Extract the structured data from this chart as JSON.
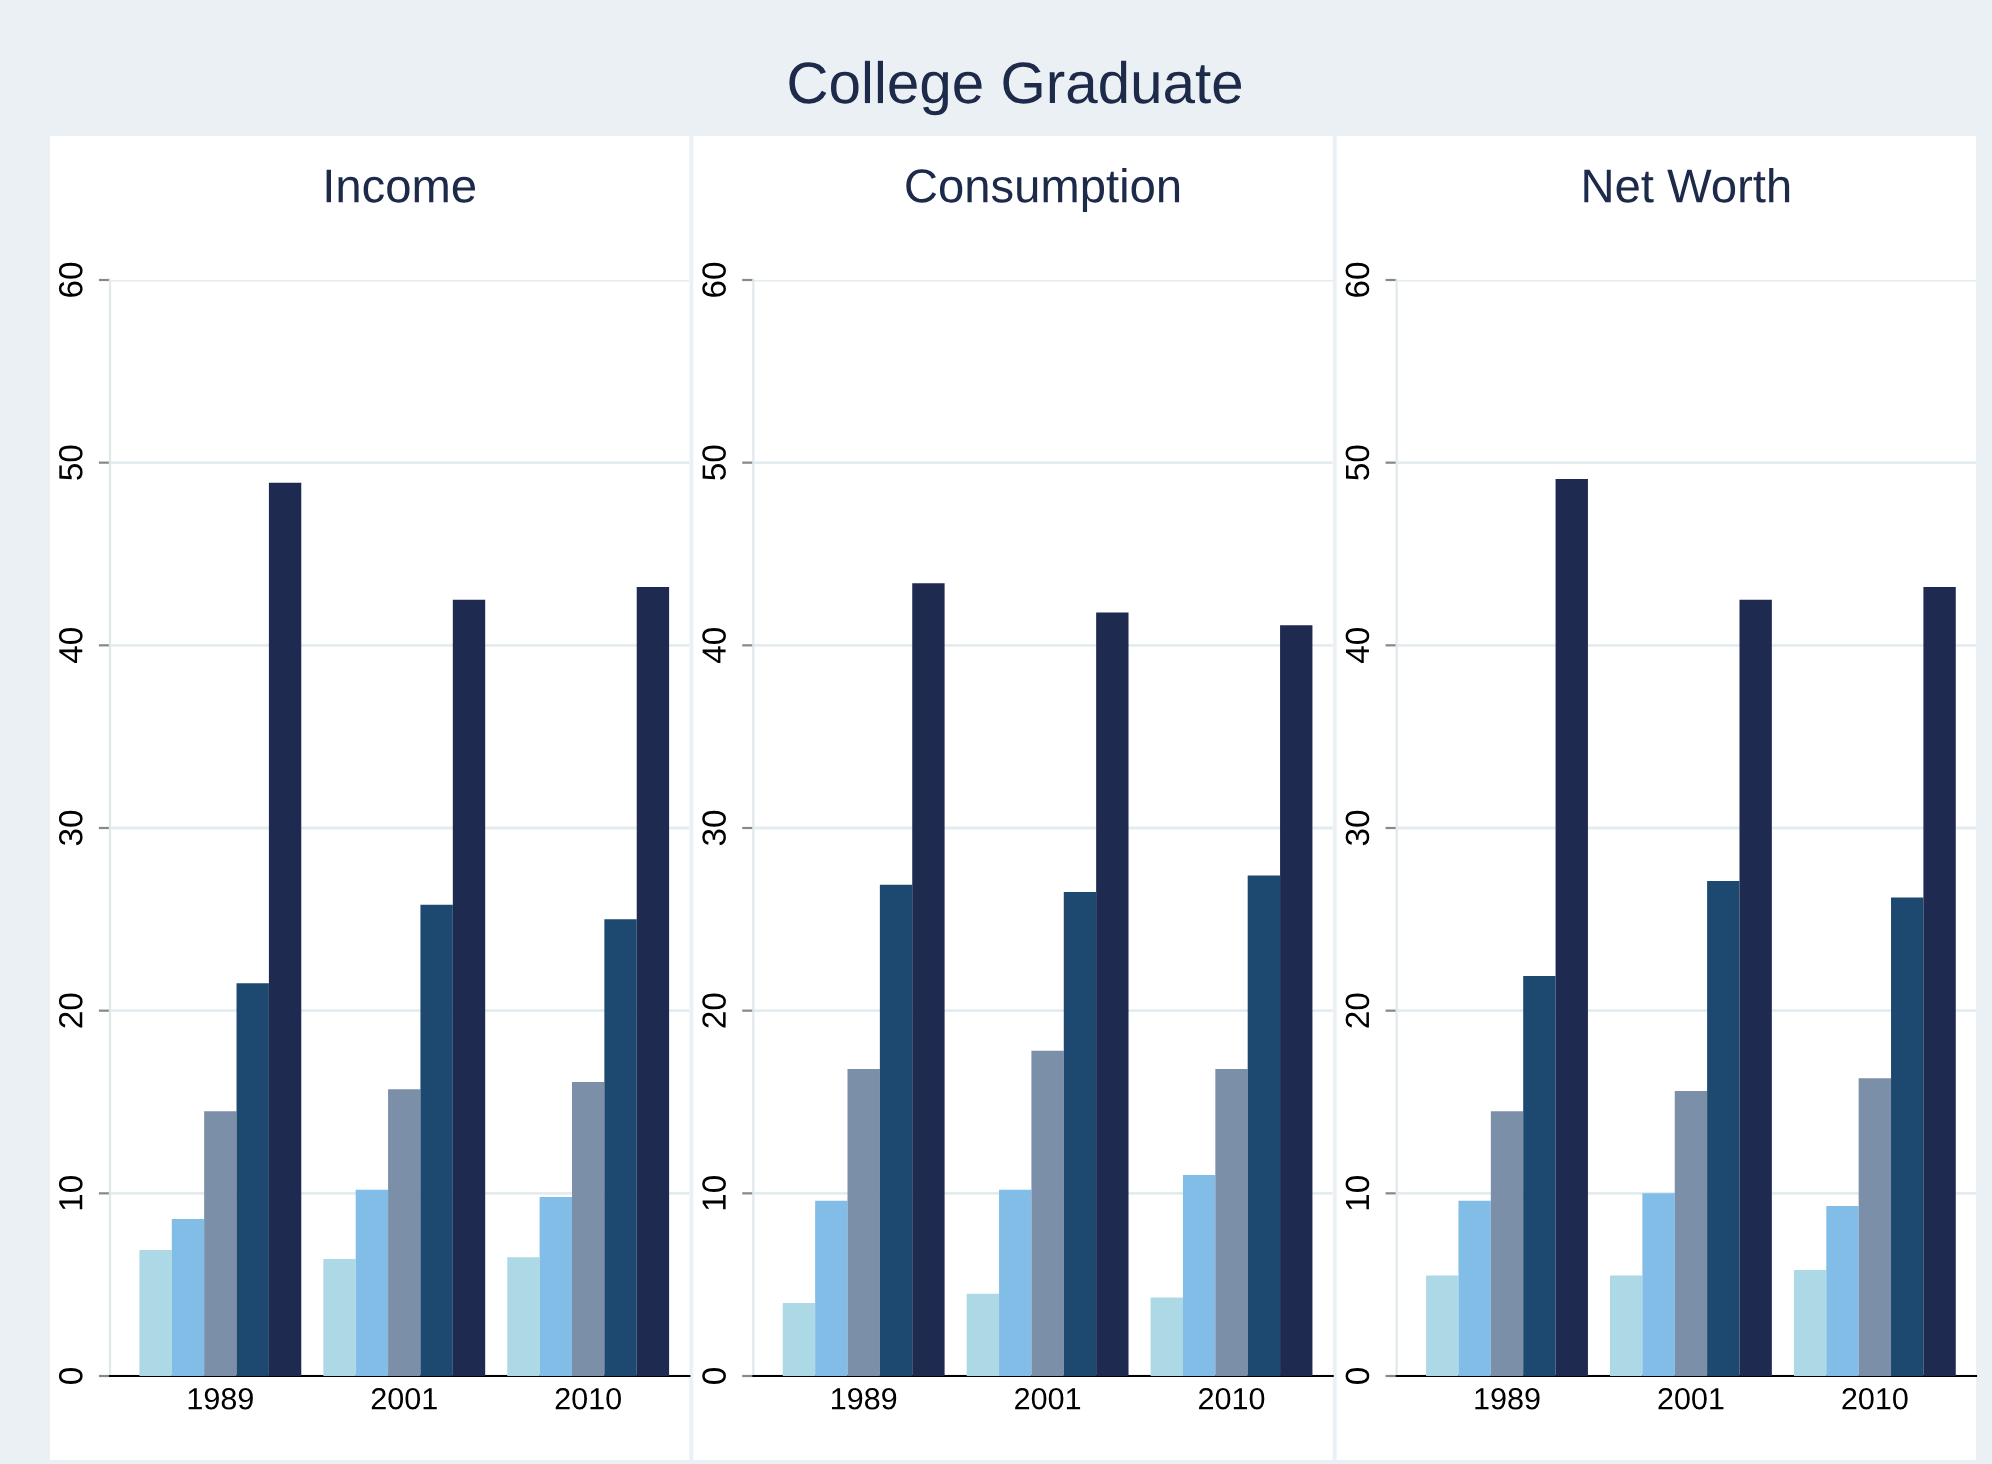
{
  "chart_data": [
    {
      "type": "bar",
      "title": "Income",
      "categories": [
        "1989",
        "2001",
        "2010"
      ],
      "ylim": [
        0,
        60
      ],
      "yticks": [
        0,
        10,
        20,
        30,
        40,
        50,
        60
      ],
      "grid": "y",
      "legend": false,
      "series": [
        {
          "color": "#add8e6",
          "values": [
            6.9,
            6.4,
            6.5
          ]
        },
        {
          "color": "#82bde8",
          "values": [
            8.6,
            10.2,
            9.8
          ]
        },
        {
          "color": "#7b8fa8",
          "values": [
            14.5,
            15.7,
            16.1
          ]
        },
        {
          "color": "#1d4870",
          "values": [
            21.5,
            25.8,
            25.0
          ]
        },
        {
          "color": "#1f2a50",
          "values": [
            48.9,
            42.5,
            43.2
          ]
        }
      ]
    },
    {
      "type": "bar",
      "title": "Consumption",
      "annotations": [
        "College Graduate"
      ],
      "categories": [
        "1989",
        "2001",
        "2010"
      ],
      "ylim": [
        0,
        60
      ],
      "yticks": [
        0,
        10,
        20,
        30,
        40,
        50,
        60
      ],
      "grid": "y",
      "legend": false,
      "series": [
        {
          "color": "#add8e6",
          "values": [
            4.0,
            4.5,
            4.3
          ]
        },
        {
          "color": "#82bde8",
          "values": [
            9.6,
            10.2,
            11.0
          ]
        },
        {
          "color": "#7b8fa8",
          "values": [
            16.8,
            17.8,
            16.8
          ]
        },
        {
          "color": "#1d4870",
          "values": [
            26.9,
            26.5,
            27.4
          ]
        },
        {
          "color": "#1f2a50",
          "values": [
            43.4,
            41.8,
            41.1
          ]
        }
      ]
    },
    {
      "type": "bar",
      "title": "Net Worth",
      "categories": [
        "1989",
        "2001",
        "2010"
      ],
      "ylim": [
        0,
        60
      ],
      "yticks": [
        0,
        10,
        20,
        30,
        40,
        50,
        60
      ],
      "grid": "y",
      "legend": false,
      "series": [
        {
          "color": "#add8e6",
          "values": [
            5.5,
            5.5,
            5.8
          ]
        },
        {
          "color": "#82bde8",
          "values": [
            9.6,
            10.0,
            9.3
          ]
        },
        {
          "color": "#7b8fa8",
          "values": [
            14.5,
            15.6,
            16.3
          ]
        },
        {
          "color": "#1d4870",
          "values": [
            21.9,
            27.1,
            26.2
          ]
        },
        {
          "color": "#1f2a50",
          "values": [
            49.1,
            42.5,
            43.2
          ]
        }
      ]
    }
  ]
}
